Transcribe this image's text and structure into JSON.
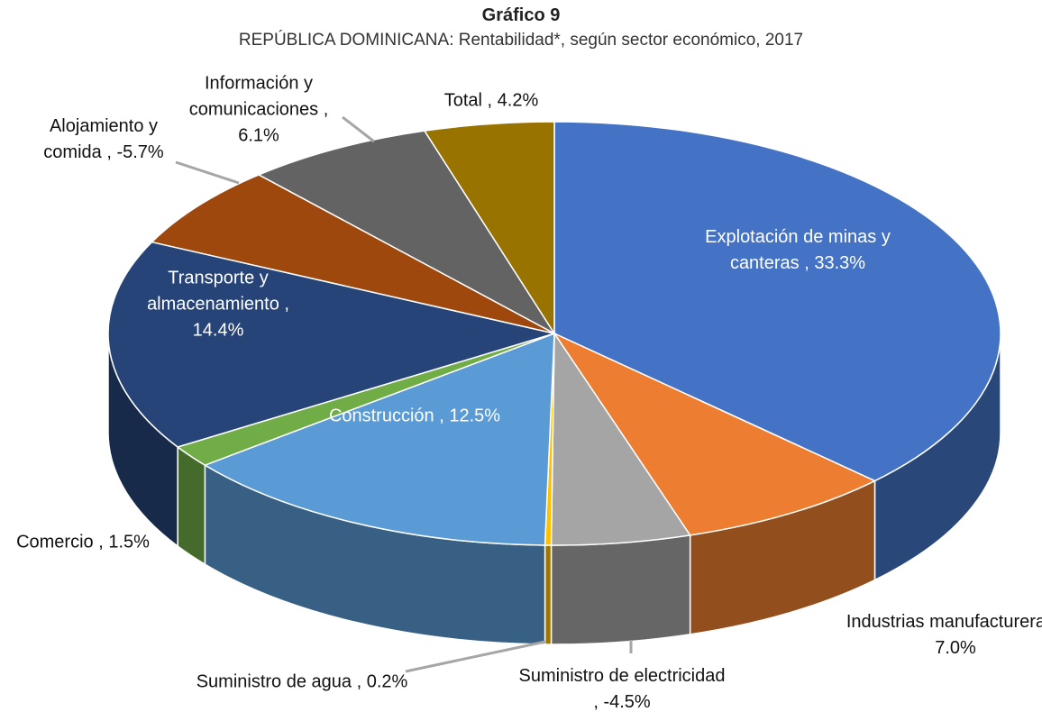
{
  "chart_data": {
    "type": "pie",
    "title": "Gráfico 9",
    "subtitle": "REPÚBLICA DOMINICANA: Rentabilidad*, según sector económico, 2017",
    "categories": [
      "Explotación de minas y canteras",
      "Industrias manufactureras",
      "Suministro de electricidad",
      "Suministro de agua",
      "Construcción",
      "Comercio",
      "Transporte y almacenamiento",
      "Alojamiento y comida",
      "Información y comunicaciones",
      "Total"
    ],
    "values": [
      33.3,
      7.0,
      -4.5,
      0.2,
      12.5,
      1.5,
      14.4,
      -5.7,
      6.1,
      4.2
    ],
    "value_labels": [
      "33.3%",
      "7.0%",
      "-4.5%",
      "0.2%",
      "12.5%",
      "1.5%",
      "14.4%",
      "-5.7%",
      "6.1%",
      "4.2%"
    ],
    "label_separator": " , ",
    "colors": [
      "#4472c4",
      "#ed7d31",
      "#a5a5a5",
      "#ffc000",
      "#5b9bd5",
      "#70ad47",
      "#264478",
      "#9e480e",
      "#636363",
      "#997300"
    ]
  }
}
